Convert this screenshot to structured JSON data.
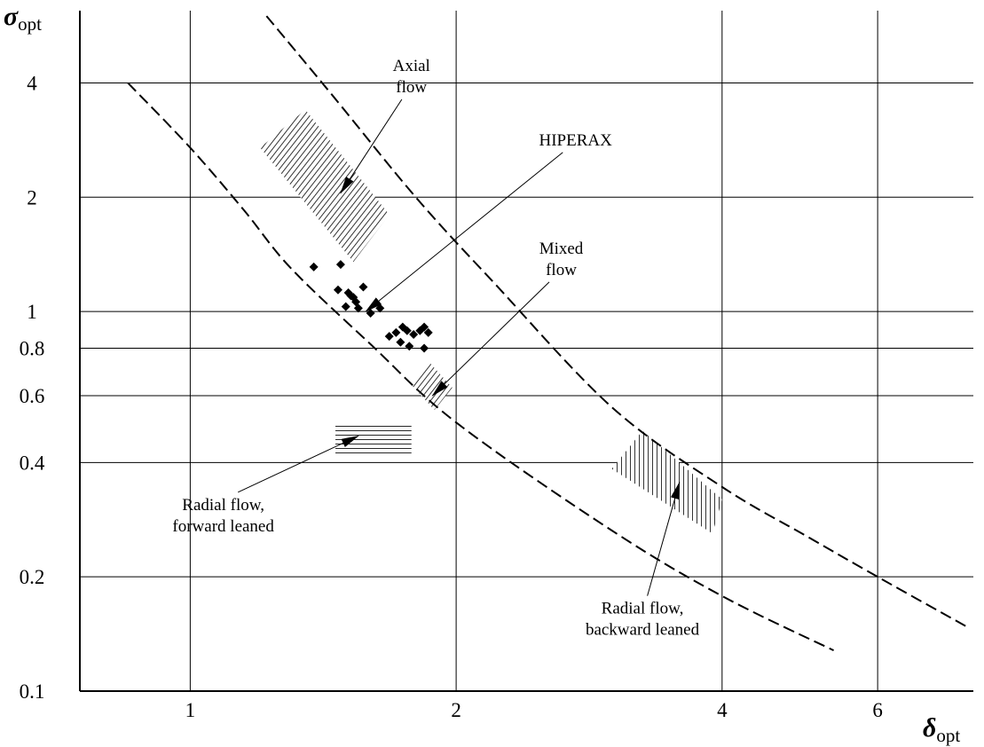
{
  "chart_data": {
    "type": "scatter",
    "title": "",
    "xlabel": {
      "symbol": "δ",
      "subscript": "opt"
    },
    "ylabel": {
      "symbol": "σ",
      "subscript": "opt"
    },
    "x_scale": "log",
    "y_scale": "log",
    "xlim": [
      0.75,
      7.7
    ],
    "ylim": [
      0.1,
      6.2
    ],
    "grid": true,
    "x_ticks": [
      1,
      2,
      4,
      6
    ],
    "x_tick_labels": [
      "1",
      "2",
      "4",
      "6"
    ],
    "y_ticks": [
      0.1,
      0.2,
      0.4,
      0.6,
      0.8,
      1,
      2,
      4
    ],
    "y_tick_labels": [
      "0.1",
      "0.2",
      "0.4",
      "0.6",
      "0.8",
      "1",
      "2",
      "4"
    ],
    "curves": [
      {
        "id": "upper-bound",
        "style": "dashed",
        "points": [
          [
            1.22,
            6.0
          ],
          [
            1.45,
            3.7
          ],
          [
            1.8,
            2.0
          ],
          [
            2.2,
            1.2
          ],
          [
            3.0,
            0.56
          ],
          [
            4.0,
            0.345
          ],
          [
            5.0,
            0.255
          ],
          [
            6.0,
            0.2
          ],
          [
            7.6,
            0.147
          ]
        ]
      },
      {
        "id": "lower-bound",
        "style": "dashed",
        "points": [
          [
            0.85,
            4.0
          ],
          [
            1.0,
            2.7
          ],
          [
            1.15,
            1.85
          ],
          [
            1.3,
            1.3
          ],
          [
            1.6,
            0.82
          ],
          [
            2.0,
            0.51
          ],
          [
            3.0,
            0.265
          ],
          [
            4.0,
            0.178
          ],
          [
            5.35,
            0.128
          ]
        ]
      }
    ],
    "regions": [
      {
        "id": "axial-flow",
        "label": "Axial\nflow",
        "hatch": "diagonal",
        "polygon": [
          [
            1.2,
            2.7
          ],
          [
            1.35,
            3.4
          ],
          [
            1.68,
            1.8
          ],
          [
            1.53,
            1.35
          ]
        ],
        "label_at": [
          1.78,
          4.3
        ],
        "arrow_to": [
          1.48,
          2.05
        ]
      },
      {
        "id": "mixed-flow",
        "label": "Mixed\nflow",
        "hatch": "diagonal",
        "polygon": [
          [
            1.78,
            0.64
          ],
          [
            1.87,
            0.73
          ],
          [
            1.98,
            0.63
          ],
          [
            1.89,
            0.55
          ]
        ],
        "label_at": [
          2.63,
          1.42
        ],
        "arrow_to": [
          1.88,
          0.6
        ]
      },
      {
        "id": "radial-forward",
        "label": "Radial flow,\nforward leaned",
        "hatch": "horizontal",
        "polygon": [
          [
            1.46,
            0.51
          ],
          [
            1.78,
            0.51
          ],
          [
            1.78,
            0.415
          ],
          [
            1.46,
            0.415
          ]
        ],
        "label_at": [
          1.09,
          0.3
        ],
        "arrow_to": [
          1.55,
          0.47
        ]
      },
      {
        "id": "radial-backward",
        "label": "Radial flow,\nbackward leaned",
        "hatch": "vertical",
        "polygon": [
          [
            3.0,
            0.385
          ],
          [
            3.25,
            0.485
          ],
          [
            4.0,
            0.32
          ],
          [
            3.9,
            0.26
          ]
        ],
        "label_at": [
          3.25,
          0.16
        ],
        "arrow_to": [
          3.58,
          0.355
        ]
      }
    ],
    "series": [
      {
        "name": "HIPERAX",
        "marker": "diamond",
        "label_at": [
          2.73,
          2.74
        ],
        "arrow_to": [
          1.58,
          1.0
        ],
        "x": [
          1.38,
          1.48,
          1.47,
          1.51,
          1.53,
          1.54,
          1.57,
          1.5,
          1.55,
          1.6,
          1.52,
          1.64,
          1.71,
          1.76,
          1.74,
          1.68,
          1.79,
          1.73,
          1.82,
          1.84,
          1.77,
          1.86,
          1.84
        ],
        "y": [
          1.31,
          1.33,
          1.14,
          1.12,
          1.09,
          1.06,
          1.16,
          1.03,
          1.02,
          0.99,
          1.1,
          1.02,
          0.88,
          0.89,
          0.91,
          0.86,
          0.87,
          0.83,
          0.89,
          0.91,
          0.81,
          0.88,
          0.8
        ]
      }
    ]
  }
}
